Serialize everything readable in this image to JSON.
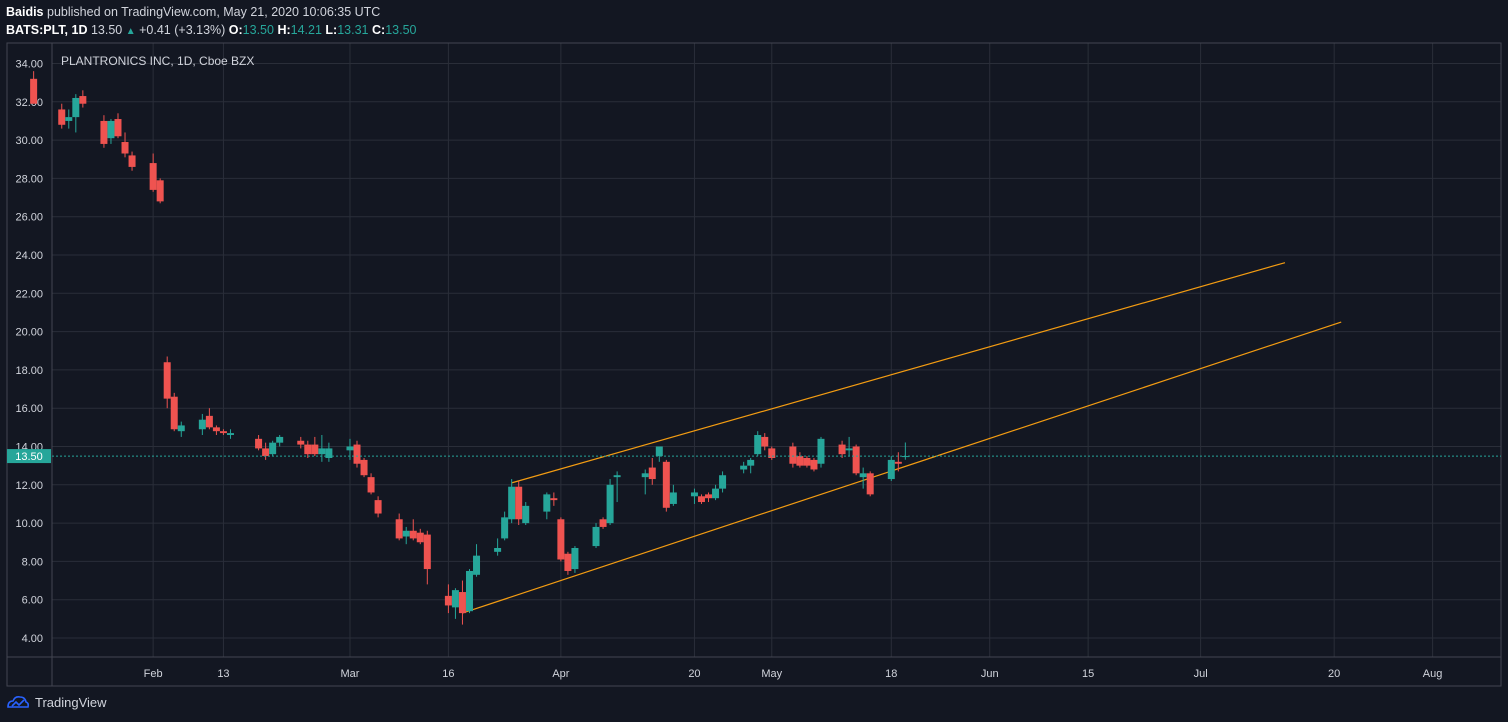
{
  "header": {
    "author": "Baidis",
    "published_text": "published on TradingView.com, May 21, 2020 10:06:35 UTC",
    "symbol": "BATS:PLT, 1D",
    "last": "13.50",
    "change": "+0.41 (+3.13%)",
    "open_label": "O:",
    "open": "13.50",
    "high_label": "H:",
    "high": "14.21",
    "low_label": "L:",
    "low": "13.31",
    "close_label": "C:",
    "close": "13.50"
  },
  "footer": {
    "brand": "TradingView",
    "logo_icon": "tradingview-logo-icon"
  },
  "colors": {
    "background": "#131722",
    "grid": "#2a2e39",
    "up": "#26a69a",
    "down": "#ef5350",
    "channel": "#f39c12",
    "price_line": "#26a69a"
  },
  "chart_data": {
    "type": "candlestick",
    "title": "PLANTRONICS INC, 1D, Cboe BZX",
    "ylim": [
      3,
      35
    ],
    "y_ticks": [
      "4.00",
      "6.00",
      "8.00",
      "10.00",
      "12.00",
      "14.00",
      "16.00",
      "18.00",
      "20.00",
      "22.00",
      "24.00",
      "26.00",
      "28.00",
      "30.00",
      "32.00",
      "34.00"
    ],
    "x_ticks": [
      {
        "label": "Feb",
        "date": "2020-02-03"
      },
      {
        "label": "13",
        "date": "2020-02-13"
      },
      {
        "label": "Mar",
        "date": "2020-03-02"
      },
      {
        "label": "16",
        "date": "2020-03-16"
      },
      {
        "label": "Apr",
        "date": "2020-04-01"
      },
      {
        "label": "20",
        "date": "2020-04-20"
      },
      {
        "label": "May",
        "date": "2020-05-01"
      },
      {
        "label": "18",
        "date": "2020-05-18"
      },
      {
        "label": "Jun",
        "date": "2020-06-01"
      },
      {
        "label": "15",
        "date": "2020-06-15"
      },
      {
        "label": "Jul",
        "date": "2020-07-01"
      },
      {
        "label": "20",
        "date": "2020-07-20"
      },
      {
        "label": "Aug",
        "date": "2020-08-03"
      }
    ],
    "last_price": 13.5,
    "candles": [
      {
        "d": "2020-01-17",
        "o": 33.2,
        "h": 33.6,
        "l": 31.9,
        "c": 31.9
      },
      {
        "d": "2020-01-21",
        "o": 31.6,
        "h": 31.9,
        "l": 30.6,
        "c": 30.8
      },
      {
        "d": "2020-01-22",
        "o": 31.0,
        "h": 31.6,
        "l": 30.6,
        "c": 31.2
      },
      {
        "d": "2020-01-23",
        "o": 31.2,
        "h": 32.4,
        "l": 30.4,
        "c": 32.2
      },
      {
        "d": "2020-01-24",
        "o": 32.3,
        "h": 32.6,
        "l": 31.7,
        "c": 31.9
      },
      {
        "d": "2020-01-27",
        "o": 31.0,
        "h": 31.3,
        "l": 29.6,
        "c": 29.8
      },
      {
        "d": "2020-01-28",
        "o": 30.1,
        "h": 31.1,
        "l": 29.8,
        "c": 31.0
      },
      {
        "d": "2020-01-29",
        "o": 31.1,
        "h": 31.4,
        "l": 30.1,
        "c": 30.2
      },
      {
        "d": "2020-01-30",
        "o": 29.9,
        "h": 30.4,
        "l": 29.1,
        "c": 29.3
      },
      {
        "d": "2020-01-31",
        "o": 29.2,
        "h": 29.4,
        "l": 28.4,
        "c": 28.6
      },
      {
        "d": "2020-02-03",
        "o": 28.8,
        "h": 29.3,
        "l": 27.3,
        "c": 27.4
      },
      {
        "d": "2020-02-04",
        "o": 27.9,
        "h": 28.0,
        "l": 26.7,
        "c": 26.8
      },
      {
        "d": "2020-02-05",
        "o": 18.4,
        "h": 18.7,
        "l": 16.0,
        "c": 16.5
      },
      {
        "d": "2020-02-06",
        "o": 16.6,
        "h": 16.8,
        "l": 14.8,
        "c": 14.9
      },
      {
        "d": "2020-02-07",
        "o": 14.8,
        "h": 15.3,
        "l": 14.5,
        "c": 15.1
      },
      {
        "d": "2020-02-10",
        "o": 14.9,
        "h": 15.7,
        "l": 14.6,
        "c": 15.4
      },
      {
        "d": "2020-02-11",
        "o": 15.6,
        "h": 16.0,
        "l": 14.9,
        "c": 15.0
      },
      {
        "d": "2020-02-12",
        "o": 15.0,
        "h": 15.1,
        "l": 14.6,
        "c": 14.8
      },
      {
        "d": "2020-02-13",
        "o": 14.8,
        "h": 14.9,
        "l": 14.6,
        "c": 14.7
      },
      {
        "d": "2020-02-14",
        "o": 14.6,
        "h": 14.9,
        "l": 14.4,
        "c": 14.7
      },
      {
        "d": "2020-02-18",
        "o": 14.4,
        "h": 14.6,
        "l": 13.8,
        "c": 13.9
      },
      {
        "d": "2020-02-19",
        "o": 13.9,
        "h": 14.2,
        "l": 13.3,
        "c": 13.5
      },
      {
        "d": "2020-02-20",
        "o": 13.6,
        "h": 14.3,
        "l": 13.5,
        "c": 14.2
      },
      {
        "d": "2020-02-21",
        "o": 14.2,
        "h": 14.6,
        "l": 14.0,
        "c": 14.5
      },
      {
        "d": "2020-02-24",
        "o": 14.3,
        "h": 14.5,
        "l": 13.9,
        "c": 14.1
      },
      {
        "d": "2020-02-25",
        "o": 14.1,
        "h": 14.3,
        "l": 13.4,
        "c": 13.6
      },
      {
        "d": "2020-02-26",
        "o": 14.1,
        "h": 14.5,
        "l": 13.5,
        "c": 13.6
      },
      {
        "d": "2020-02-27",
        "o": 13.6,
        "h": 14.6,
        "l": 13.2,
        "c": 13.9
      },
      {
        "d": "2020-02-28",
        "o": 13.4,
        "h": 14.2,
        "l": 13.2,
        "c": 13.9
      },
      {
        "d": "2020-03-02",
        "o": 13.8,
        "h": 14.4,
        "l": 13.3,
        "c": 14.0
      },
      {
        "d": "2020-03-03",
        "o": 14.1,
        "h": 14.3,
        "l": 12.9,
        "c": 13.1
      },
      {
        "d": "2020-03-04",
        "o": 13.3,
        "h": 13.4,
        "l": 12.4,
        "c": 12.5
      },
      {
        "d": "2020-03-05",
        "o": 12.4,
        "h": 12.6,
        "l": 11.5,
        "c": 11.6
      },
      {
        "d": "2020-03-06",
        "o": 11.2,
        "h": 11.4,
        "l": 10.3,
        "c": 10.5
      },
      {
        "d": "2020-03-09",
        "o": 10.2,
        "h": 10.5,
        "l": 9.1,
        "c": 9.2
      },
      {
        "d": "2020-03-10",
        "o": 9.3,
        "h": 9.8,
        "l": 8.9,
        "c": 9.6
      },
      {
        "d": "2020-03-11",
        "o": 9.6,
        "h": 10.2,
        "l": 9.1,
        "c": 9.2
      },
      {
        "d": "2020-03-12",
        "o": 9.5,
        "h": 9.7,
        "l": 8.9,
        "c": 9.0
      },
      {
        "d": "2020-03-13",
        "o": 9.4,
        "h": 9.6,
        "l": 6.8,
        "c": 7.6
      },
      {
        "d": "2020-03-16",
        "o": 6.2,
        "h": 6.8,
        "l": 5.3,
        "c": 5.7
      },
      {
        "d": "2020-03-17",
        "o": 5.6,
        "h": 6.6,
        "l": 5.0,
        "c": 6.5
      },
      {
        "d": "2020-03-18",
        "o": 6.4,
        "h": 7.0,
        "l": 4.7,
        "c": 5.3
      },
      {
        "d": "2020-03-19",
        "o": 5.4,
        "h": 7.6,
        "l": 5.3,
        "c": 7.5
      },
      {
        "d": "2020-03-20",
        "o": 7.3,
        "h": 8.9,
        "l": 7.2,
        "c": 8.3
      },
      {
        "d": "2020-03-23",
        "o": 8.5,
        "h": 9.2,
        "l": 8.3,
        "c": 8.7
      },
      {
        "d": "2020-03-24",
        "o": 9.2,
        "h": 10.6,
        "l": 9.1,
        "c": 10.3
      },
      {
        "d": "2020-03-25",
        "o": 10.2,
        "h": 12.3,
        "l": 10.0,
        "c": 11.9
      },
      {
        "d": "2020-03-26",
        "o": 11.9,
        "h": 12.2,
        "l": 9.9,
        "c": 10.2
      },
      {
        "d": "2020-03-27",
        "o": 10.0,
        "h": 11.1,
        "l": 9.9,
        "c": 10.9
      },
      {
        "d": "2020-03-30",
        "o": 10.6,
        "h": 11.6,
        "l": 10.2,
        "c": 11.5
      },
      {
        "d": "2020-03-31",
        "o": 11.3,
        "h": 11.6,
        "l": 10.9,
        "c": 11.2
      },
      {
        "d": "2020-04-01",
        "o": 10.2,
        "h": 10.3,
        "l": 8.0,
        "c": 8.1
      },
      {
        "d": "2020-04-02",
        "o": 8.4,
        "h": 8.5,
        "l": 7.3,
        "c": 7.5
      },
      {
        "d": "2020-04-03",
        "o": 7.6,
        "h": 8.8,
        "l": 7.4,
        "c": 8.7
      },
      {
        "d": "2020-04-06",
        "o": 8.8,
        "h": 10.0,
        "l": 8.7,
        "c": 9.8
      },
      {
        "d": "2020-04-07",
        "o": 10.2,
        "h": 10.3,
        "l": 9.7,
        "c": 9.8
      },
      {
        "d": "2020-04-08",
        "o": 10.0,
        "h": 12.3,
        "l": 9.9,
        "c": 12.0
      },
      {
        "d": "2020-04-09",
        "o": 12.4,
        "h": 12.7,
        "l": 11.1,
        "c": 12.5
      },
      {
        "d": "2020-04-13",
        "o": 12.4,
        "h": 12.8,
        "l": 11.5,
        "c": 12.6
      },
      {
        "d": "2020-04-14",
        "o": 12.9,
        "h": 13.4,
        "l": 12.0,
        "c": 12.3
      },
      {
        "d": "2020-04-15",
        "o": 13.5,
        "h": 14.0,
        "l": 13.2,
        "c": 14.0
      },
      {
        "d": "2020-04-16",
        "o": 13.2,
        "h": 13.3,
        "l": 10.6,
        "c": 10.8
      },
      {
        "d": "2020-04-17",
        "o": 11.0,
        "h": 12.0,
        "l": 10.9,
        "c": 11.6
      },
      {
        "d": "2020-04-20",
        "o": 11.4,
        "h": 11.8,
        "l": 11.0,
        "c": 11.6
      },
      {
        "d": "2020-04-21",
        "o": 11.4,
        "h": 11.5,
        "l": 11.0,
        "c": 11.1
      },
      {
        "d": "2020-04-22",
        "o": 11.5,
        "h": 11.6,
        "l": 11.1,
        "c": 11.3
      },
      {
        "d": "2020-04-23",
        "o": 11.3,
        "h": 12.0,
        "l": 11.2,
        "c": 11.8
      },
      {
        "d": "2020-04-24",
        "o": 11.8,
        "h": 12.7,
        "l": 11.6,
        "c": 12.5
      },
      {
        "d": "2020-04-27",
        "o": 12.8,
        "h": 13.2,
        "l": 12.6,
        "c": 13.0
      },
      {
        "d": "2020-04-28",
        "o": 13.0,
        "h": 13.4,
        "l": 12.6,
        "c": 13.3
      },
      {
        "d": "2020-04-29",
        "o": 13.6,
        "h": 14.8,
        "l": 13.5,
        "c": 14.6
      },
      {
        "d": "2020-04-30",
        "o": 14.5,
        "h": 14.7,
        "l": 13.8,
        "c": 14.0
      },
      {
        "d": "2020-05-01",
        "o": 13.9,
        "h": 14.0,
        "l": 13.3,
        "c": 13.4
      },
      {
        "d": "2020-05-04",
        "o": 14.0,
        "h": 14.2,
        "l": 12.9,
        "c": 13.1
      },
      {
        "d": "2020-05-05",
        "o": 13.5,
        "h": 13.7,
        "l": 12.9,
        "c": 13.0
      },
      {
        "d": "2020-05-06",
        "o": 13.4,
        "h": 13.5,
        "l": 12.9,
        "c": 13.0
      },
      {
        "d": "2020-05-07",
        "o": 13.3,
        "h": 13.4,
        "l": 12.7,
        "c": 12.8
      },
      {
        "d": "2020-05-08",
        "o": 13.1,
        "h": 14.5,
        "l": 12.9,
        "c": 14.4
      },
      {
        "d": "2020-05-11",
        "o": 14.1,
        "h": 14.3,
        "l": 13.4,
        "c": 13.6
      },
      {
        "d": "2020-05-12",
        "o": 13.8,
        "h": 14.5,
        "l": 13.5,
        "c": 13.9
      },
      {
        "d": "2020-05-13",
        "o": 14.0,
        "h": 14.1,
        "l": 12.5,
        "c": 12.6
      },
      {
        "d": "2020-05-14",
        "o": 12.4,
        "h": 12.9,
        "l": 11.8,
        "c": 12.6
      },
      {
        "d": "2020-05-15",
        "o": 12.6,
        "h": 12.7,
        "l": 11.4,
        "c": 11.5
      },
      {
        "d": "2020-05-18",
        "o": 12.3,
        "h": 13.5,
        "l": 12.2,
        "c": 13.3
      },
      {
        "d": "2020-05-19",
        "o": 13.2,
        "h": 13.7,
        "l": 12.7,
        "c": 13.1
      },
      {
        "d": "2020-05-20",
        "o": 13.5,
        "h": 14.21,
        "l": 13.31,
        "c": 13.5
      }
    ],
    "channel_lines": [
      {
        "name": "upper",
        "from": {
          "d": "2020-03-25",
          "v": 12.1
        },
        "to": {
          "d": "2020-07-13",
          "v": 23.6
        }
      },
      {
        "name": "lower",
        "from": {
          "d": "2020-03-18",
          "v": 5.3
        },
        "to": {
          "d": "2020-07-21",
          "v": 20.5
        }
      }
    ]
  }
}
